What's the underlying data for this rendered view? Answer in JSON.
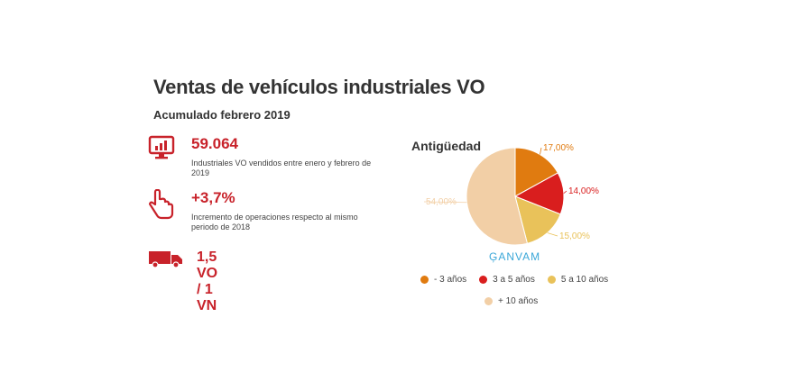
{
  "header": {
    "title": "Ventas de vehículos industriales VO",
    "subtitle": "Acumulado febrero 2019"
  },
  "stats": [
    {
      "value": "59.064",
      "description": "Industriales VO vendidos entre enero y febrero de 2019",
      "icon": "monitor-chart-icon"
    },
    {
      "value": "+3,7%",
      "description": "Incremento de operaciones respecto al mismo periodo de 2018",
      "icon": "pointing-hand-icon"
    },
    {
      "value": "1,5 VO / 1 VN",
      "description": "",
      "icon": "truck-icon"
    }
  ],
  "colors": {
    "accent": "#c8222a",
    "slice_minus3": "#e07b10",
    "slice_3to5": "#d91e1e",
    "slice_5to10": "#e9c25a",
    "slice_plus10": "#f2cfa6",
    "brand": "#3aa7d8"
  },
  "brand": "ĢANVAM",
  "chart_data": {
    "type": "pie",
    "title": "Antigüedad",
    "categories": [
      "- 3 años",
      "3 a 5 años",
      "5 a 10 años",
      "+ 10 años"
    ],
    "values": [
      17.0,
      14.0,
      15.0,
      54.0
    ],
    "value_labels": [
      "17,00%",
      "14,00%",
      "15,00%",
      "54,00%"
    ],
    "legend_position": "bottom"
  }
}
